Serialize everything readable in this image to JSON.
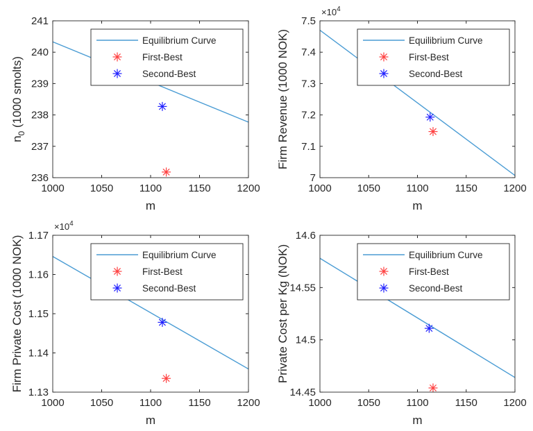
{
  "colors": {
    "equilibrium_curve": "#4a9cd4",
    "first_best": "#ff4040",
    "second_best": "#1f1fff",
    "axes": "#262626"
  },
  "chart_data": [
    {
      "type": "line",
      "title": "",
      "xlabel": "m",
      "ylabel": "n_0 (1000 smolts)",
      "ylabel_main": "n",
      "ylabel_sub": "0",
      "ylabel_rest": " (1000 smolts)",
      "xlim": [
        1000,
        1200
      ],
      "ylim": [
        236,
        241
      ],
      "xticks": [
        1000,
        1050,
        1100,
        1150,
        1200
      ],
      "yticks": [
        236,
        237,
        238,
        239,
        240,
        241
      ],
      "xtick_labels": [
        "1000",
        "1050",
        "1100",
        "1150",
        "1200"
      ],
      "ytick_labels": [
        "236",
        "237",
        "238",
        "239",
        "240",
        "241"
      ],
      "exponent_label": "",
      "legend_position": "top-right",
      "series": [
        {
          "name": "Equilibrium Curve",
          "kind": "line",
          "x": [
            1000,
            1200
          ],
          "y": [
            240.33,
            237.77
          ]
        },
        {
          "name": "First-Best",
          "kind": "marker",
          "x": [
            1116
          ],
          "y": [
            236.18
          ]
        },
        {
          "name": "Second-Best",
          "kind": "marker",
          "x": [
            1112
          ],
          "y": [
            238.27
          ]
        }
      ]
    },
    {
      "type": "line",
      "title": "",
      "xlabel": "m",
      "ylabel": "Firm Revenue (1000 NOK)",
      "xlim": [
        1000,
        1200
      ],
      "ylim": [
        70000,
        75000
      ],
      "xticks": [
        1000,
        1050,
        1100,
        1150,
        1200
      ],
      "yticks": [
        70000,
        71000,
        72000,
        73000,
        74000,
        75000
      ],
      "xtick_labels": [
        "1000",
        "1050",
        "1100",
        "1150",
        "1200"
      ],
      "ytick_labels": [
        "7",
        "7.1",
        "7.2",
        "7.3",
        "7.4",
        "7.5"
      ],
      "exponent_label": "×10",
      "exponent_power": "4",
      "legend_position": "top-right",
      "series": [
        {
          "name": "Equilibrium Curve",
          "kind": "line",
          "x": [
            1000,
            1200
          ],
          "y": [
            74700,
            70070
          ]
        },
        {
          "name": "First-Best",
          "kind": "marker",
          "x": [
            1116
          ],
          "y": [
            71470
          ]
        },
        {
          "name": "Second-Best",
          "kind": "marker",
          "x": [
            1113
          ],
          "y": [
            71930
          ]
        }
      ]
    },
    {
      "type": "line",
      "title": "",
      "xlabel": "m",
      "ylabel": "Firm Private Cost (1000 NOK)",
      "xlim": [
        1000,
        1200
      ],
      "ylim": [
        11300,
        11700
      ],
      "xticks": [
        1000,
        1050,
        1100,
        1150,
        1200
      ],
      "yticks": [
        11300,
        11400,
        11500,
        11600,
        11700
      ],
      "xtick_labels": [
        "1000",
        "1050",
        "1100",
        "1150",
        "1200"
      ],
      "ytick_labels": [
        "1.13",
        "1.14",
        "1.15",
        "1.16",
        "1.17"
      ],
      "exponent_label": "×10",
      "exponent_power": "4",
      "legend_position": "top-right",
      "series": [
        {
          "name": "Equilibrium Curve",
          "kind": "line",
          "x": [
            1000,
            1200
          ],
          "y": [
            11646,
            11359
          ]
        },
        {
          "name": "First-Best",
          "kind": "marker",
          "x": [
            1116
          ],
          "y": [
            11335
          ]
        },
        {
          "name": "Second-Best",
          "kind": "marker",
          "x": [
            1112
          ],
          "y": [
            11478
          ]
        }
      ]
    },
    {
      "type": "line",
      "title": "",
      "xlabel": "m",
      "ylabel": "Private Cost per Kg (NOK)",
      "xlim": [
        1000,
        1200
      ],
      "ylim": [
        14.45,
        14.6
      ],
      "xticks": [
        1000,
        1050,
        1100,
        1150,
        1200
      ],
      "yticks": [
        14.45,
        14.5,
        14.55,
        14.6
      ],
      "xtick_labels": [
        "1000",
        "1050",
        "1100",
        "1150",
        "1200"
      ],
      "ytick_labels": [
        "14.45",
        "14.5",
        "14.55",
        "14.6"
      ],
      "exponent_label": "",
      "legend_position": "top-right",
      "series": [
        {
          "name": "Equilibrium Curve",
          "kind": "line",
          "x": [
            1000,
            1200
          ],
          "y": [
            14.578,
            14.464
          ]
        },
        {
          "name": "First-Best",
          "kind": "marker",
          "x": [
            1116
          ],
          "y": [
            14.454
          ]
        },
        {
          "name": "Second-Best",
          "kind": "marker",
          "x": [
            1112
          ],
          "y": [
            14.511
          ]
        }
      ]
    }
  ]
}
